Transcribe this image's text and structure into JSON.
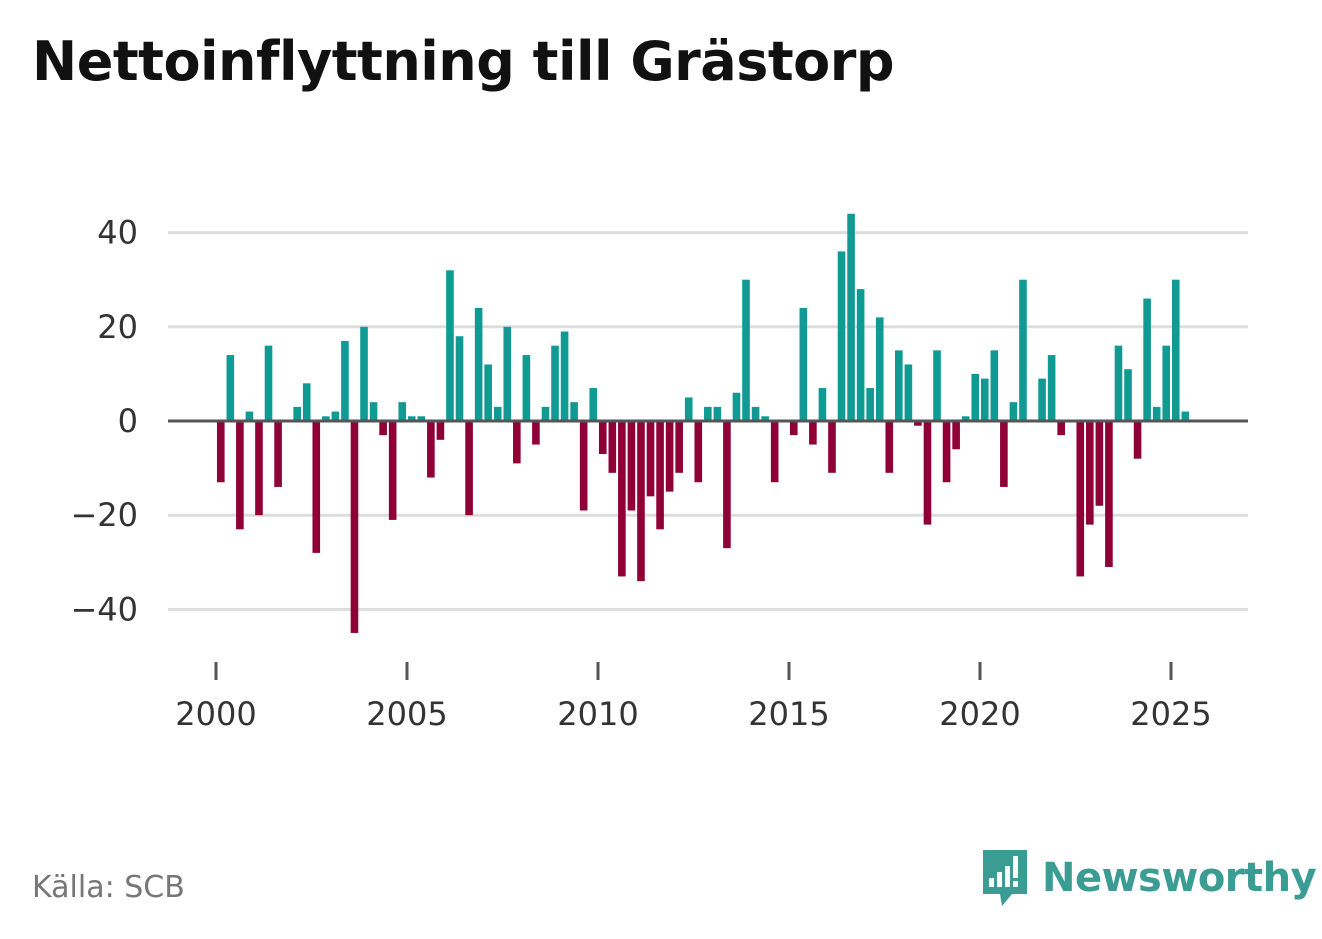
{
  "title": "Nettoinflyttning till Grästorp",
  "source": "Källa: SCB",
  "brand": {
    "name": "Newsworthy",
    "icon": "newsworthy-logo-icon",
    "color": "#3a9c93"
  },
  "colors": {
    "positive": "#0f9a94",
    "negative": "#8f0036",
    "grid": "#dddddd",
    "zero_line": "#555555",
    "text": "#333333"
  },
  "chart_data": {
    "type": "bar",
    "title": "Nettoinflyttning till Grästorp",
    "xlabel": "",
    "ylabel": "",
    "frequency": "quarterly",
    "start": "2000-Q1",
    "ylim": [
      -45,
      45
    ],
    "xlim": [
      2000,
      2026
    ],
    "yticks": [
      -40,
      -20,
      0,
      20,
      40
    ],
    "ytick_labels": [
      "−40",
      "−20",
      "0",
      "20",
      "40"
    ],
    "xticks": [
      2000,
      2005,
      2010,
      2015,
      2020,
      2025
    ],
    "xtick_labels": [
      "2000",
      "2005",
      "2010",
      "2015",
      "2020",
      "2025"
    ],
    "values": [
      -13,
      14,
      -23,
      2,
      -20,
      16,
      -14,
      0,
      3,
      8,
      -28,
      1,
      2,
      17,
      -45,
      20,
      4,
      -3,
      -21,
      4,
      1,
      1,
      -12,
      -4,
      32,
      18,
      -20,
      24,
      12,
      3,
      20,
      -9,
      14,
      -5,
      3,
      16,
      19,
      4,
      -19,
      7,
      -7,
      -11,
      -33,
      -19,
      -34,
      -16,
      -23,
      -15,
      -11,
      5,
      -13,
      3,
      3,
      -27,
      6,
      30,
      3,
      1,
      -13,
      0,
      -3,
      24,
      -5,
      7,
      -11,
      36,
      44,
      28,
      7,
      22,
      -11,
      15,
      12,
      -1,
      -22,
      15,
      -13,
      -6,
      1,
      10,
      9,
      15,
      -14,
      4,
      30,
      0,
      9,
      14,
      -3,
      0,
      -33,
      -22,
      -18,
      -31,
      16,
      11,
      -8,
      26,
      3,
      16,
      30,
      2
    ]
  }
}
